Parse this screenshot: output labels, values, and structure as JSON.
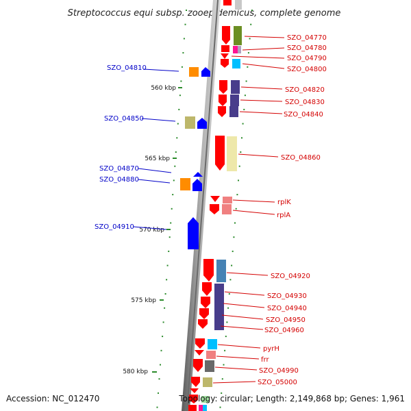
{
  "title": "Streptococcus equi subsp. zooepidemicus, complete genome",
  "accession": "Accession: NC_012470",
  "topology": "Topology: circular; Length: 2,149,868 bp; Genes: 1,961",
  "colors": {
    "backbone": "#8a8a8a",
    "forward_label": "#d40000",
    "reverse_label": "#0000c8",
    "forward_gene": "#ff0000",
    "reverse_gene": "#0000ff",
    "tick": "#2a8a2a"
  },
  "kbp_labels": [
    {
      "text": "560 kbp"
    },
    {
      "text": "565 kbp"
    },
    {
      "text": "570 kbp"
    },
    {
      "text": "575 kbp"
    },
    {
      "text": "580 kbp"
    }
  ],
  "forward_genes": [
    {
      "label": "SZO_04770",
      "cog": "#6b8e23"
    },
    {
      "label": "SZO_04780",
      "cog": "#ff1493"
    },
    {
      "label": "SZO_04790",
      "cog": ""
    },
    {
      "label": "SZO_04800",
      "cog": "#00bfff"
    },
    {
      "label": "SZO_04820",
      "cog": "#483d8b"
    },
    {
      "label": "SZO_04830",
      "cog": "#483d8b"
    },
    {
      "label": "SZO_04840",
      "cog": "#483d8b"
    },
    {
      "label": "SZO_04860",
      "cog": "#eee8aa"
    },
    {
      "label": "rplK",
      "cog": "#f08080"
    },
    {
      "label": "rplA",
      "cog": "#f08080"
    },
    {
      "label": "SZO_04920",
      "cog": "#4682b4"
    },
    {
      "label": "SZO_04930",
      "cog": "#483d8b"
    },
    {
      "label": "SZO_04940",
      "cog": "#483d8b"
    },
    {
      "label": "SZO_04950",
      "cog": "#483d8b"
    },
    {
      "label": "SZO_04960",
      "cog": ""
    },
    {
      "label": "pyrH",
      "cog": "#00bfff"
    },
    {
      "label": "frr",
      "cog": "#f08080"
    },
    {
      "label": "SZO_04990",
      "cog": "#696969"
    },
    {
      "label": "SZO_05000",
      "cog": "#bdb76b"
    }
  ],
  "reverse_genes": [
    {
      "label": "SZO_04810",
      "cog": "#ff8c00"
    },
    {
      "label": "SZO_04850",
      "cog": "#bdb76b"
    },
    {
      "label": "SZO_04870",
      "cog": ""
    },
    {
      "label": "SZO_04880",
      "cog": "#ff8c00"
    },
    {
      "label": "SZO_04910",
      "cog": ""
    }
  ]
}
